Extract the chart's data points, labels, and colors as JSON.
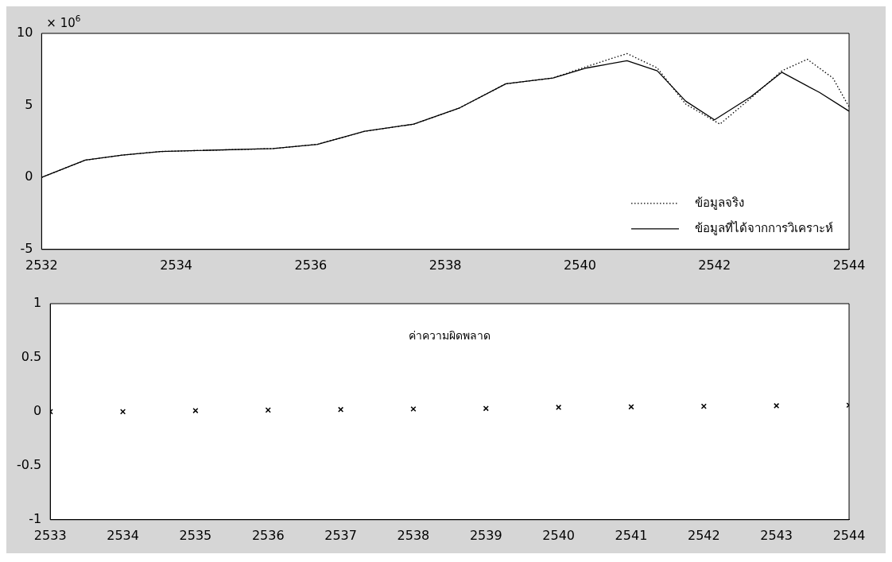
{
  "chart_data": [
    {
      "type": "line",
      "xlim": [
        2532,
        2544
      ],
      "xticks": [
        2532,
        2534,
        2536,
        2538,
        2540,
        2542,
        2544
      ],
      "ylim": [
        -5,
        10
      ],
      "yticks": [
        -5,
        0,
        5,
        10
      ],
      "legend": "bottom right",
      "annotations": [
        "× 10$^{6}$"
      ],
      "series": [
        {
          "name": "ข้อมูลจริง",
          "color": "#000000",
          "line_style": "dotted",
          "x": [
            2532,
            2532.65,
            2533.2,
            2533.77,
            2535.44,
            2536.1,
            2536.8,
            2537.53,
            2538.2,
            2538.9,
            2539.6,
            2540.1,
            2540.7,
            2541.15,
            2541.57,
            2542.08,
            2542.54,
            2543.0,
            2543.38,
            2543.76,
            2544
          ],
          "values": [
            0,
            1.2,
            1.55,
            1.8,
            2.0,
            2.3,
            3.2,
            3.7,
            4.8,
            6.5,
            6.9,
            7.7,
            8.6,
            7.6,
            5.1,
            3.7,
            5.5,
            7.4,
            8.2,
            6.9,
            4.9
          ]
        },
        {
          "name": "ข้อมูลที่ได้จากการวิเคราะห์",
          "color": "#000000",
          "line_style": "solid",
          "x": [
            2532,
            2532.65,
            2533.2,
            2533.77,
            2535.44,
            2536.1,
            2536.8,
            2537.53,
            2538.2,
            2538.9,
            2539.6,
            2540.1,
            2540.7,
            2541.15,
            2541.57,
            2542.0,
            2542.54,
            2543.0,
            2543.56,
            2544
          ],
          "values": [
            0,
            1.2,
            1.55,
            1.8,
            2.0,
            2.3,
            3.2,
            3.7,
            4.8,
            6.5,
            6.9,
            7.6,
            8.1,
            7.4,
            5.3,
            4.0,
            5.6,
            7.3,
            5.9,
            4.6
          ]
        }
      ]
    },
    {
      "type": "scatter",
      "xlim": [
        2533,
        2544
      ],
      "xticks": [
        2533,
        2534,
        2535,
        2536,
        2537,
        2538,
        2539,
        2540,
        2541,
        2542,
        2543,
        2544
      ],
      "ylim": [
        -1,
        1
      ],
      "yticks": [
        -1,
        -0.5,
        0,
        0.5,
        1
      ],
      "marker": "cross",
      "color": "#000000",
      "annotations": [
        "ค่าความผิดพลาด"
      ],
      "x": [
        2533,
        2534,
        2535,
        2536,
        2537,
        2538,
        2539,
        2540,
        2541,
        2542,
        2543,
        2544
      ],
      "values": [
        0,
        0,
        0.01,
        0.015,
        0.02,
        0.025,
        0.03,
        0.04,
        0.045,
        0.05,
        0.055,
        0.06
      ]
    }
  ]
}
